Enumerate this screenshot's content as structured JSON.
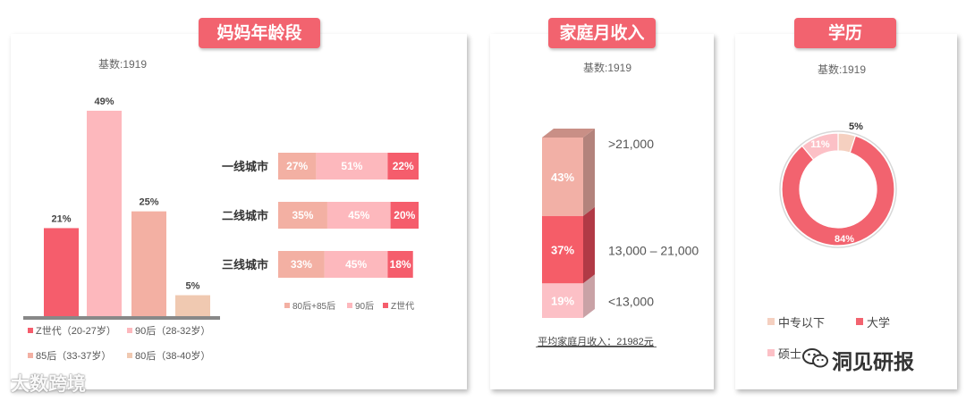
{
  "panels": {
    "age": {
      "title": "妈妈年龄段",
      "base": "基数:1919"
    },
    "income": {
      "title": "家庭月收入",
      "base": "基数:1919",
      "footer": "平均家庭月收入：21982元"
    },
    "education": {
      "title": "学历",
      "base": "基数:1919"
    }
  },
  "watermarks": {
    "left": "大数跨境",
    "right": "洞见研报"
  },
  "colors": {
    "z_gen": "#f55d6c",
    "gen90": "#fdb8bd",
    "gen85": "#f3b0a3",
    "gen80": "#f0c9b1",
    "title_badge": "#f2636f",
    "stack_top": "#f2b0a6",
    "stack_mid": "#f55d68",
    "stack_bottom": "#fcc0c6",
    "donut_light": "#f5d0c0",
    "donut_main": "#f2636f",
    "donut_pink": "#fcc0c6"
  },
  "chart_data": [
    {
      "type": "bar",
      "categories": [
        "Z世代（20-27岁）",
        "90后（28-32岁）",
        "85后（33-37岁）",
        "80后（38-40岁）"
      ],
      "values": [
        21,
        49,
        25,
        5
      ],
      "value_labels": [
        "21%",
        "49%",
        "25%",
        "5%"
      ],
      "colors": [
        "#f55d6c",
        "#fdb8bd",
        "#f3b0a3",
        "#f0c9b1"
      ],
      "ylim": [
        0,
        52
      ]
    },
    {
      "type": "bar",
      "orientation": "horizontal-stacked",
      "categories": [
        "一线城市",
        "二线城市",
        "三线城市"
      ],
      "series": [
        {
          "name": "80后+85后",
          "values": [
            27,
            35,
            33
          ],
          "color": "#f3b0a3"
        },
        {
          "name": "90后",
          "values": [
            51,
            45,
            45
          ],
          "color": "#fdb8bd"
        },
        {
          "name": "Z世代",
          "values": [
            22,
            20,
            18
          ],
          "color": "#f55d6c"
        }
      ],
      "value_labels": [
        [
          "27%",
          "51%",
          "22%"
        ],
        [
          "35%",
          "45%",
          "20%"
        ],
        [
          "33%",
          "45%",
          "18%"
        ]
      ],
      "legend": "bottom"
    },
    {
      "type": "bar",
      "orientation": "stacked-column",
      "categories": [
        "<13,000",
        "13,000 – 21,000",
        ">21,000"
      ],
      "values": [
        19,
        37,
        43
      ],
      "value_labels": [
        "19%",
        "37%",
        "43%"
      ],
      "colors": [
        "#fcc0c6",
        "#f55d68",
        "#f2b0a6"
      ]
    },
    {
      "type": "pie",
      "style": "donut",
      "labels": [
        "中专以下",
        "大学",
        "硕士"
      ],
      "legend_labels": [
        "中专以下",
        "大学",
        "硕士"
      ],
      "values": [
        5,
        84,
        11
      ],
      "value_labels": [
        "5%",
        "84%",
        "11%"
      ],
      "colors": [
        "#f5d0c0",
        "#f2636f",
        "#fcc0c6"
      ],
      "legend": "bottom"
    }
  ]
}
